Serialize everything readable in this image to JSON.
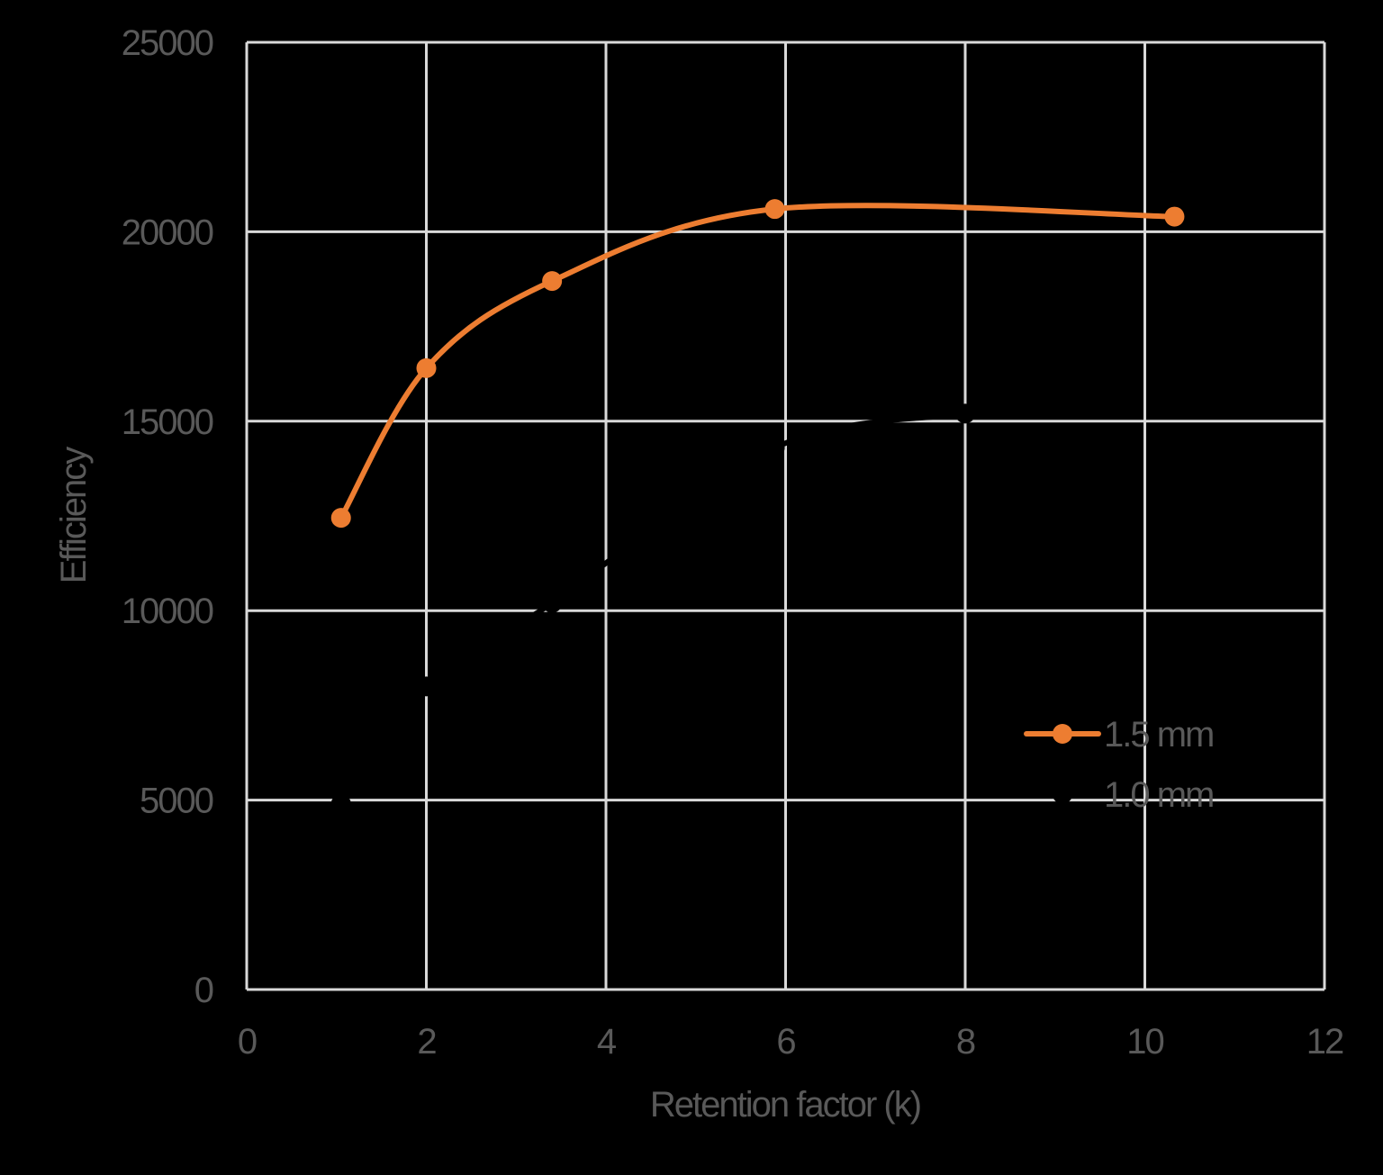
{
  "chart_data": {
    "type": "line",
    "title": "",
    "xlabel": "Retention factor (k)",
    "ylabel": "Efficiency",
    "xlim": [
      0,
      12
    ],
    "ylim": [
      0,
      25000
    ],
    "xticks": [
      0,
      2,
      4,
      6,
      8,
      10,
      12
    ],
    "yticks": [
      0,
      5000,
      10000,
      15000,
      20000,
      25000
    ],
    "grid": true,
    "legend_position": "right-inside",
    "smooth": true,
    "series": [
      {
        "name": "1.5 mm",
        "color": "#ED7D31",
        "marker": "circle",
        "x": [
          1.05,
          2.0,
          3.4,
          5.88,
          10.33
        ],
        "values": [
          12450,
          16400,
          18700,
          20600,
          20400
        ]
      },
      {
        "name": "1.0 mm",
        "color": "#000000",
        "marker": "circle",
        "x": [
          1.05,
          2.0,
          3.4,
          5.88,
          8.0
        ],
        "values": [
          4900,
          8000,
          10200,
          14300,
          15200
        ]
      }
    ]
  },
  "colors": {
    "background": "#000000",
    "gridline": "#D9D9D9",
    "text": "#595959",
    "series_1": "#ED7D31",
    "series_2": "#000000"
  },
  "legend": {
    "items": [
      {
        "label": "1.5 mm",
        "color": "#ED7D31"
      },
      {
        "label": "1.0 mm",
        "color": "#000000"
      }
    ]
  }
}
